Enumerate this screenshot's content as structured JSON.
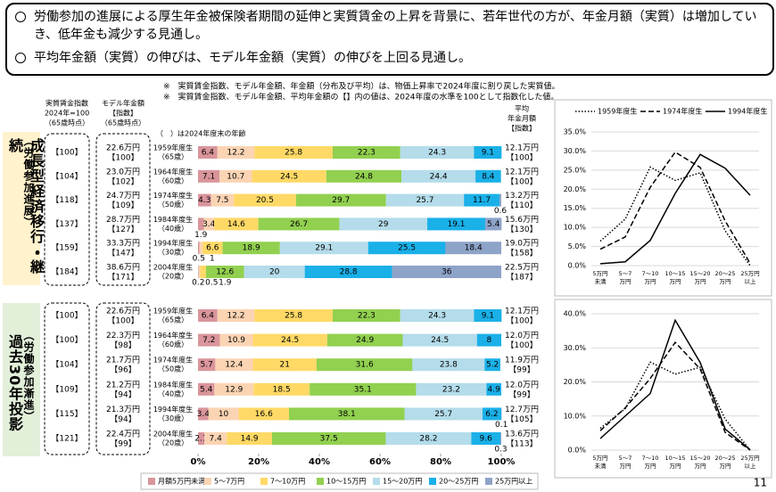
{
  "header": {
    "bullets": [
      "労働参加の進展による厚生年金被保険者期間の延伸と実質賃金の上昇を背景に、若年世代の方が、年金月額（実質）は増加していき、低年金も減少する見通し。",
      "平均年金額（実質）の伸びは、モデル年金額（実質）の伸びを上回る見通し。"
    ]
  },
  "notes": [
    "※　実質賃金指数、モデル年金額、年金額（分布及び平均）は、物価上昇率で2024年度に割り戻した実質値。",
    "※　実質賃金指数、モデル年金額、平均年金額の【】内の値は、2024年度の水準を100として指数化した値。"
  ],
  "column_headers": {
    "wage_index": [
      "実質賃金指数",
      "2024年=100",
      "（65歳時点）"
    ],
    "model_pension": [
      "モデル年金額",
      "【指数】",
      "（65歳時点）"
    ],
    "age_note": "（　）は2024年度末の年齢",
    "average_pension": [
      "平均",
      "年金月額",
      "【指数】"
    ]
  },
  "panels": [
    {
      "label": "成長型経済移行・継続",
      "sublabel": "（労働参加進展）",
      "rows": [
        {
          "wage_index": "【100】",
          "model": [
            "22.6万円",
            "【100】"
          ],
          "average": [
            "12.1万円",
            "【100】"
          ]
        },
        {
          "wage_index": "【104】",
          "model": [
            "23.0万円",
            "【102】"
          ],
          "average": [
            "12.1万円",
            "【100】"
          ]
        },
        {
          "wage_index": "【118】",
          "model": [
            "24.7万円",
            "【109】"
          ],
          "average": [
            "13.2万円",
            "【110】"
          ]
        },
        {
          "wage_index": "【137】",
          "model": [
            "28.7万円",
            "【127】"
          ],
          "average": [
            "15.6万円",
            "【130】"
          ]
        },
        {
          "wage_index": "【159】",
          "model": [
            "33.3万円",
            "【147】"
          ],
          "average": [
            "19.0万円",
            "【158】"
          ]
        },
        {
          "wage_index": "【184】",
          "model": [
            "38.6万円",
            "【171】"
          ],
          "average": [
            "22.5万円",
            "【187】"
          ]
        }
      ]
    },
    {
      "label": "過去30年投影",
      "sublabel": "（労働参加漸進）",
      "rows": [
        {
          "wage_index": "【100】",
          "model": [
            "22.6万円",
            "【100】"
          ],
          "average": [
            "12.1万円",
            "【100】"
          ]
        },
        {
          "wage_index": "【100】",
          "model": [
            "22.3万円",
            "【98】"
          ],
          "average": [
            "12.0万円",
            "【100】"
          ]
        },
        {
          "wage_index": "【104】",
          "model": [
            "21.7万円",
            "【96】"
          ],
          "average": [
            "11.9万円",
            "【99】"
          ]
        },
        {
          "wage_index": "【109】",
          "model": [
            "21.2万円",
            "【94】"
          ],
          "average": [
            "12.0万円",
            "【99】"
          ]
        },
        {
          "wage_index": "【115】",
          "model": [
            "21.3万円",
            "【94】"
          ],
          "average": [
            "12.7万円",
            "【105】"
          ]
        },
        {
          "wage_index": "【121】",
          "model": [
            "22.4万円",
            "【99】"
          ],
          "average": [
            "13.6万円",
            "【113】"
          ]
        }
      ]
    }
  ],
  "chart_data": [
    {
      "type": "bar",
      "orientation": "horizontal",
      "stacked": true,
      "categories": [
        "1959年度生",
        "1964年度生",
        "1974年度生",
        "1984年度生",
        "1994年度生",
        "2004年度生"
      ],
      "ages": [
        "（65歳）",
        "（60歳）",
        "（50歳）",
        "（40歳）",
        "（30歳）",
        "（20歳）"
      ],
      "xlim": [
        0,
        100
      ],
      "series": [
        {
          "color": "#d9959b",
          "values": [
            6.4,
            7.1,
            4.3,
            1.9,
            0.5,
            0.2
          ]
        },
        {
          "color": "#fbd4b4",
          "values": [
            12.2,
            10.7,
            7.5,
            3.4,
            1.0,
            0.5
          ]
        },
        {
          "color": "#ffd966",
          "values": [
            25.8,
            24.5,
            20.5,
            14.6,
            6.6,
            1.9
          ]
        },
        {
          "color": "#92d050",
          "values": [
            22.3,
            24.8,
            29.7,
            26.7,
            18.9,
            12.6
          ]
        },
        {
          "color": "#b4dcea",
          "values": [
            24.3,
            24.4,
            25.7,
            29.0,
            29.1,
            20.0
          ]
        },
        {
          "color": "#1ab0e8",
          "values": [
            9.1,
            8.4,
            11.7,
            19.1,
            25.5,
            28.8
          ]
        },
        {
          "color": "#8ea3c8",
          "values": [
            0,
            0,
            0.6,
            5.4,
            18.4,
            36.0
          ]
        }
      ]
    },
    {
      "type": "bar",
      "orientation": "horizontal",
      "stacked": true,
      "categories": [
        "1959年度生",
        "1964年度生",
        "1974年度生",
        "1984年度生",
        "1994年度生",
        "2004年度生"
      ],
      "ages": [
        "（65歳）",
        "（60歳）",
        "（50歳）",
        "（40歳）",
        "（30歳）",
        "（20歳）"
      ],
      "xlim": [
        0,
        100
      ],
      "xticks": [
        {
          "value": 0,
          "label": "0%"
        },
        {
          "value": 20,
          "label": "20%"
        },
        {
          "value": 40,
          "label": "40%"
        },
        {
          "value": 60,
          "label": "60%"
        },
        {
          "value": 80,
          "label": "80%"
        },
        {
          "value": 100,
          "label": "100%"
        }
      ],
      "series": [
        {
          "name": "月額5万円未満",
          "color": "#d9959b",
          "values": [
            6.4,
            7.2,
            5.7,
            5.4,
            3.4,
            2.1
          ]
        },
        {
          "name": "5～7万円",
          "color": "#fbd4b4",
          "values": [
            12.2,
            10.9,
            12.4,
            12.9,
            10.0,
            7.4
          ]
        },
        {
          "name": "7～10万円",
          "color": "#ffd966",
          "values": [
            25.8,
            24.5,
            21.0,
            18.5,
            16.6,
            14.9
          ]
        },
        {
          "name": "10～15万円",
          "color": "#92d050",
          "values": [
            22.3,
            24.9,
            31.6,
            35.1,
            38.1,
            37.5
          ]
        },
        {
          "name": "15～20万円",
          "color": "#b4dcea",
          "values": [
            24.3,
            24.5,
            23.8,
            23.2,
            25.7,
            28.2
          ]
        },
        {
          "name": "20～25万円",
          "color": "#1ab0e8",
          "values": [
            9.1,
            8.0,
            5.2,
            4.9,
            6.2,
            9.6
          ]
        },
        {
          "name": "25万円以上",
          "color": "#8ea3c8",
          "values": [
            0,
            0,
            0,
            0,
            0.1,
            0.3
          ]
        }
      ]
    },
    {
      "type": "line",
      "categories": [
        [
          "5万円",
          "未満"
        ],
        [
          "5～7",
          "万円"
        ],
        [
          "7～10",
          "万円"
        ],
        [
          "10～15",
          "万円"
        ],
        [
          "15～20",
          "万円"
        ],
        [
          "20～25",
          "万円"
        ],
        [
          "25万円",
          "以上"
        ]
      ],
      "ylim": [
        0,
        35
      ],
      "yticks": [
        {
          "value": 0,
          "label": "0.0%"
        },
        {
          "value": 5,
          "label": "5.0%"
        },
        {
          "value": 10,
          "label": "10.0%"
        },
        {
          "value": 15,
          "label": "15.0%"
        },
        {
          "value": 20,
          "label": "20.0%"
        },
        {
          "value": 25,
          "label": "25.0%"
        },
        {
          "value": 30,
          "label": "30.0%"
        },
        {
          "value": 35,
          "label": "35.0%"
        }
      ],
      "grid": true,
      "series": [
        {
          "name": "1959年度生",
          "color": "#000000",
          "linestyle": "dotted",
          "values": [
            6.4,
            12.2,
            25.8,
            22.3,
            24.3,
            9.1,
            0
          ]
        },
        {
          "name": "1974年度生",
          "color": "#000000",
          "linestyle": "dashed",
          "values": [
            4.3,
            7.5,
            20.5,
            29.7,
            25.7,
            11.7,
            0.6
          ]
        },
        {
          "name": "1994年度生",
          "color": "#000000",
          "linestyle": "solid",
          "values": [
            0.5,
            1.0,
            6.6,
            18.9,
            29.1,
            25.5,
            18.4
          ]
        }
      ]
    },
    {
      "type": "line",
      "categories": [
        [
          "5万円",
          "未満"
        ],
        [
          "5～7",
          "万円"
        ],
        [
          "7～10",
          "万円"
        ],
        [
          "10～15",
          "万円"
        ],
        [
          "15～20",
          "万円"
        ],
        [
          "20～25",
          "万円"
        ],
        [
          "25万円",
          "以上"
        ]
      ],
      "ylim": [
        0,
        40
      ],
      "yticks": [
        {
          "value": 0,
          "label": "0.0%"
        },
        {
          "value": 10,
          "label": "10.0%"
        },
        {
          "value": 20,
          "label": "20.0%"
        },
        {
          "value": 30,
          "label": "30.0%"
        },
        {
          "value": 40,
          "label": "40.0%"
        }
      ],
      "grid": true,
      "series": [
        {
          "color": "#000000",
          "linestyle": "dotted",
          "values": [
            6.4,
            12.2,
            25.8,
            22.3,
            24.3,
            9.1,
            0
          ]
        },
        {
          "color": "#000000",
          "linestyle": "dashed",
          "values": [
            5.7,
            12.4,
            21.0,
            31.6,
            23.8,
            5.2,
            0
          ]
        },
        {
          "color": "#000000",
          "linestyle": "solid",
          "values": [
            3.4,
            10.0,
            16.6,
            38.1,
            25.7,
            6.2,
            0.1
          ]
        }
      ]
    }
  ],
  "page_number": "11"
}
